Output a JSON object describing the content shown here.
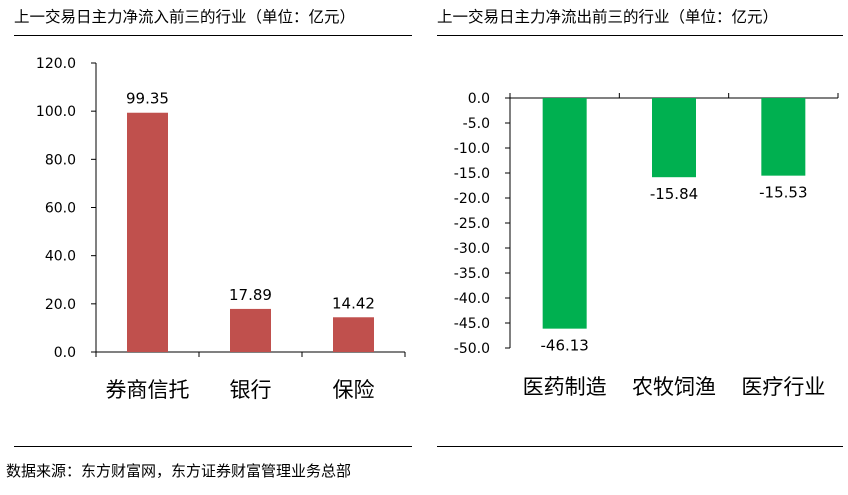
{
  "chart_data": [
    {
      "type": "bar",
      "title": "上一交易日主力净流入前三的行业（单位：亿元）",
      "categories": [
        "券商信托",
        "银行",
        "保险"
      ],
      "values": [
        99.35,
        17.89,
        14.42
      ],
      "value_labels": [
        "99.35",
        "17.89",
        "14.42"
      ],
      "ylim": [
        0,
        120
      ],
      "yticks": [
        "0.0",
        "20.0",
        "40.0",
        "60.0",
        "80.0",
        "100.0",
        "120.0"
      ],
      "grid": false,
      "bar_color": "#c0504d"
    },
    {
      "type": "bar",
      "title": "上一交易日主力净流出前三的行业（单位：亿元）",
      "categories": [
        "医药制造",
        "农牧饲渔",
        "医疗行业"
      ],
      "values": [
        -46.13,
        -15.84,
        -15.53
      ],
      "value_labels": [
        "-46.13",
        "-15.84",
        "-15.53"
      ],
      "ylim": [
        -50,
        0
      ],
      "yticks": [
        "0.0",
        "-5.0",
        "-10.0",
        "-15.0",
        "-20.0",
        "-25.0",
        "-30.0",
        "-35.0",
        "-40.0",
        "-45.0",
        "-50.0"
      ],
      "grid": false,
      "bar_color": "#00b050"
    }
  ],
  "source": "数据来源：东方财富网，东方证券财富管理业务总部"
}
